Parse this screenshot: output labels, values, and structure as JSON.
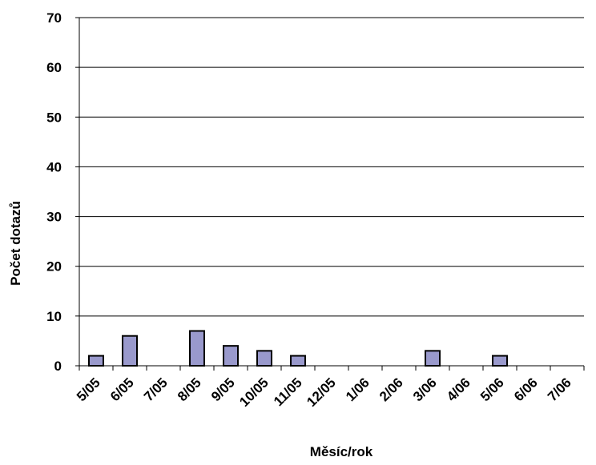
{
  "chart_data": {
    "type": "bar",
    "categories": [
      "5/05",
      "6/05",
      "7/05",
      "8/05",
      "9/05",
      "10/05",
      "11/05",
      "12/05",
      "1/06",
      "2/06",
      "3/06",
      "4/06",
      "5/06",
      "6/06",
      "7/06"
    ],
    "values": [
      2,
      6,
      0,
      7,
      4,
      3,
      2,
      0,
      0,
      0,
      3,
      0,
      2,
      0,
      0
    ],
    "title": "",
    "xlabel": "Měsíc/rok",
    "ylabel": "Počet dotazů",
    "ylim": [
      0,
      70
    ],
    "yticks": [
      0,
      10,
      20,
      30,
      40,
      50,
      60,
      70
    ],
    "grid": true,
    "legend": "none",
    "colors": {
      "bar_fill": "#9999cc",
      "bar_stroke": "#000000",
      "grid": "#000000"
    }
  }
}
